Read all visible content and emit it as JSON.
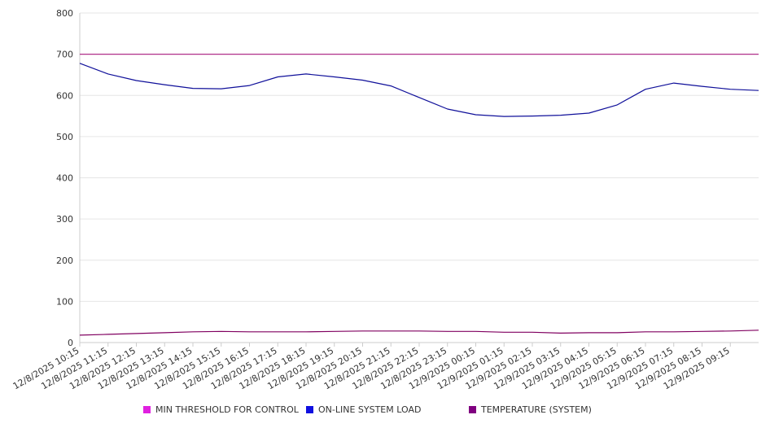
{
  "chart_data": {
    "type": "line",
    "title": "",
    "xlabel": "",
    "ylabel": "",
    "ylim": [
      0,
      800
    ],
    "yticks": [
      "0",
      "100",
      "200",
      "300",
      "400",
      "500",
      "600",
      "700",
      "800"
    ],
    "x_start": "12/8/2025 10:15",
    "x_end": "12/9/2025 10:15",
    "xtick_labels": [
      "12/8/2025 10:15",
      "12/8/2025 11:15",
      "12/8/2025 12:15",
      "12/8/2025 13:15",
      "12/8/2025 14:15",
      "12/8/2025 15:15",
      "12/8/2025 16:15",
      "12/8/2025 17:15",
      "12/8/2025 18:15",
      "12/8/2025 19:15",
      "12/8/2025 20:15",
      "12/8/2025 21:15",
      "12/8/2025 22:15",
      "12/8/2025 23:15",
      "12/9/2025 00:15",
      "12/9/2025 01:15",
      "12/9/2025 02:15",
      "12/9/2025 03:15",
      "12/9/2025 04:15",
      "12/9/2025 05:15",
      "12/9/2025 06:15",
      "12/9/2025 07:15",
      "12/9/2025 08:15",
      "12/9/2025 09:15"
    ],
    "grid": "horizontal",
    "legend_position": "bottom",
    "series": [
      {
        "name": "MIN THRESHOLD FOR CONTROL",
        "color": "#e020e0",
        "line_color": "#b0308a",
        "x": [
          "12/8/2025 10:15",
          "12/9/2025 10:15"
        ],
        "values": [
          700,
          700
        ]
      },
      {
        "name": "ON-LINE SYSTEM LOAD",
        "color": "#1010e0",
        "line_color": "#10109a",
        "x": [
          "12/8/2025 10:15",
          "12/8/2025 11:15",
          "12/8/2025 12:15",
          "12/8/2025 13:15",
          "12/8/2025 14:15",
          "12/8/2025 15:15",
          "12/8/2025 16:15",
          "12/8/2025 17:15",
          "12/8/2025 18:15",
          "12/8/2025 19:15",
          "12/8/2025 20:15",
          "12/8/2025 21:15",
          "12/8/2025 22:15",
          "12/8/2025 23:15",
          "12/9/2025 00:15",
          "12/9/2025 01:15",
          "12/9/2025 02:15",
          "12/9/2025 03:15",
          "12/9/2025 04:15",
          "12/9/2025 05:15",
          "12/9/2025 06:15",
          "12/9/2025 07:15",
          "12/9/2025 08:15",
          "12/9/2025 09:15",
          "12/9/2025 10:15"
        ],
        "values": [
          678,
          652,
          636,
          626,
          617,
          616,
          624,
          645,
          652,
          645,
          637,
          623,
          595,
          567,
          553,
          549,
          550,
          552,
          557,
          577,
          615,
          630,
          622,
          615,
          612
        ]
      },
      {
        "name": "TEMPERATURE (SYSTEM)",
        "color": "#800080",
        "line_color": "#800060",
        "x": [
          "12/8/2025 10:15",
          "12/8/2025 11:15",
          "12/8/2025 12:15",
          "12/8/2025 13:15",
          "12/8/2025 14:15",
          "12/8/2025 15:15",
          "12/8/2025 16:15",
          "12/8/2025 17:15",
          "12/8/2025 18:15",
          "12/8/2025 19:15",
          "12/8/2025 20:15",
          "12/8/2025 21:15",
          "12/8/2025 22:15",
          "12/8/2025 23:15",
          "12/9/2025 00:15",
          "12/9/2025 01:15",
          "12/9/2025 02:15",
          "12/9/2025 03:15",
          "12/9/2025 04:15",
          "12/9/2025 05:15",
          "12/9/2025 06:15",
          "12/9/2025 07:15",
          "12/9/2025 08:15",
          "12/9/2025 09:15",
          "12/9/2025 10:15"
        ],
        "values": [
          18,
          20,
          22,
          24,
          26,
          27,
          26,
          26,
          26,
          27,
          28,
          28,
          28,
          27,
          27,
          25,
          25,
          23,
          24,
          24,
          26,
          26,
          27,
          28,
          30
        ]
      }
    ]
  }
}
